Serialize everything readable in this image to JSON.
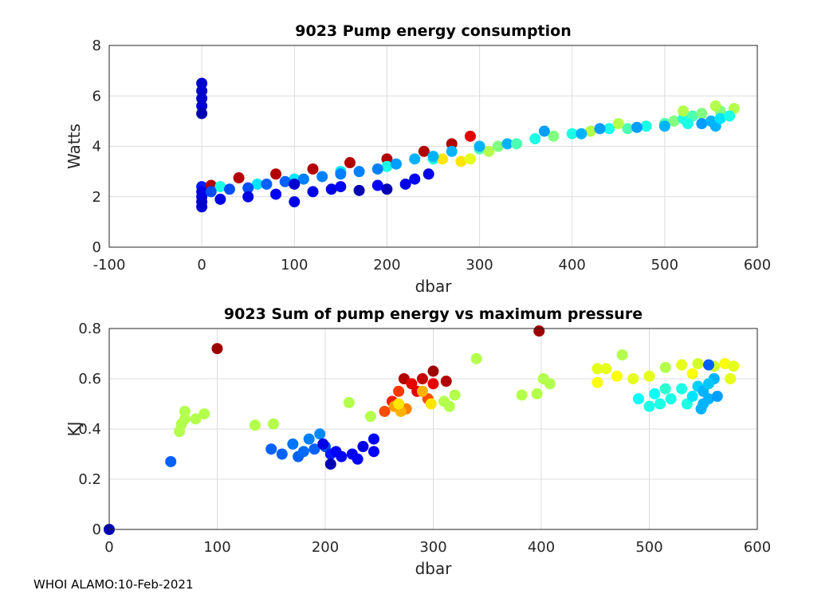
{
  "footer": "WHOI ALAMO:10-Feb-2021",
  "chart_data": [
    {
      "type": "scatter",
      "title": "9023 Pump energy consumption",
      "xlabel": "dbar",
      "ylabel": "Watts",
      "xlim": [
        -100,
        600
      ],
      "ylim": [
        0,
        8
      ],
      "xticks": [
        -100,
        0,
        100,
        200,
        300,
        400,
        500,
        600
      ],
      "yticks": [
        0,
        2,
        4,
        6,
        8
      ],
      "grid": true,
      "color_scale": "jet (0-1)",
      "points": [
        [
          0,
          6.5,
          0.08
        ],
        [
          0,
          6.2,
          0.08
        ],
        [
          0,
          5.9,
          0.08
        ],
        [
          0,
          5.6,
          0.08
        ],
        [
          0,
          5.3,
          0.05
        ],
        [
          0,
          2.4,
          0.15
        ],
        [
          0,
          2.2,
          0.1
        ],
        [
          0,
          2.0,
          0.1
        ],
        [
          0,
          1.8,
          0.08
        ],
        [
          0,
          1.6,
          0.08
        ],
        [
          10,
          2.45,
          0.95
        ],
        [
          40,
          2.75,
          0.95
        ],
        [
          80,
          2.9,
          0.95
        ],
        [
          120,
          3.1,
          0.95
        ],
        [
          160,
          3.35,
          0.95
        ],
        [
          200,
          3.5,
          0.95
        ],
        [
          240,
          3.8,
          0.95
        ],
        [
          270,
          4.1,
          0.95
        ],
        [
          290,
          4.4,
          0.9
        ],
        [
          20,
          2.4,
          0.4
        ],
        [
          60,
          2.5,
          0.35
        ],
        [
          100,
          2.7,
          0.35
        ],
        [
          150,
          3.0,
          0.35
        ],
        [
          200,
          3.2,
          0.4
        ],
        [
          250,
          3.5,
          0.4
        ],
        [
          300,
          3.9,
          0.45
        ],
        [
          320,
          4.0,
          0.5
        ],
        [
          280,
          3.4,
          0.65
        ],
        [
          290,
          3.5,
          0.6
        ],
        [
          310,
          3.8,
          0.55
        ],
        [
          260,
          3.5,
          0.65
        ],
        [
          10,
          2.2,
          0.2
        ],
        [
          30,
          2.3,
          0.2
        ],
        [
          50,
          2.35,
          0.2
        ],
        [
          70,
          2.5,
          0.22
        ],
        [
          90,
          2.6,
          0.22
        ],
        [
          110,
          2.7,
          0.25
        ],
        [
          130,
          2.8,
          0.25
        ],
        [
          150,
          2.9,
          0.25
        ],
        [
          170,
          3.0,
          0.25
        ],
        [
          190,
          3.1,
          0.25
        ],
        [
          210,
          3.3,
          0.28
        ],
        [
          230,
          3.5,
          0.3
        ],
        [
          250,
          3.6,
          0.3
        ],
        [
          270,
          3.8,
          0.3
        ],
        [
          300,
          4.0,
          0.3
        ],
        [
          330,
          4.1,
          0.3
        ],
        [
          20,
          1.9,
          0.1
        ],
        [
          50,
          2.0,
          0.1
        ],
        [
          80,
          2.1,
          0.12
        ],
        [
          100,
          1.8,
          0.1
        ],
        [
          100,
          2.5,
          0.08
        ],
        [
          120,
          2.2,
          0.1
        ],
        [
          140,
          2.3,
          0.1
        ],
        [
          170,
          2.25,
          0.05
        ],
        [
          200,
          2.3,
          0.05
        ],
        [
          220,
          2.5,
          0.1
        ],
        [
          245,
          2.9,
          0.1
        ],
        [
          230,
          2.7,
          0.12
        ],
        [
          190,
          2.45,
          0.12
        ],
        [
          150,
          2.4,
          0.12
        ],
        [
          340,
          4.1,
          0.45
        ],
        [
          360,
          4.3,
          0.4
        ],
        [
          380,
          4.4,
          0.5
        ],
        [
          400,
          4.5,
          0.4
        ],
        [
          420,
          4.6,
          0.55
        ],
        [
          440,
          4.7,
          0.4
        ],
        [
          460,
          4.7,
          0.45
        ],
        [
          480,
          4.8,
          0.4
        ],
        [
          500,
          4.9,
          0.45
        ],
        [
          510,
          5.0,
          0.5
        ],
        [
          520,
          5.1,
          0.4
        ],
        [
          530,
          5.2,
          0.45
        ],
        [
          540,
          5.3,
          0.5
        ],
        [
          560,
          5.4,
          0.5
        ],
        [
          575,
          5.5,
          0.55
        ],
        [
          450,
          4.9,
          0.55
        ],
        [
          520,
          5.4,
          0.55
        ],
        [
          555,
          5.6,
          0.55
        ],
        [
          525,
          4.9,
          0.4
        ],
        [
          370,
          4.6,
          0.28
        ],
        [
          410,
          4.5,
          0.3
        ],
        [
          430,
          4.7,
          0.28
        ],
        [
          470,
          4.75,
          0.28
        ],
        [
          500,
          4.8,
          0.3
        ],
        [
          540,
          4.9,
          0.28
        ],
        [
          550,
          5.0,
          0.3
        ],
        [
          555,
          4.8,
          0.3
        ],
        [
          560,
          5.1,
          0.35
        ],
        [
          570,
          5.2,
          0.4
        ]
      ]
    },
    {
      "type": "scatter",
      "title": "9023 Sum of pump energy vs maximum pressure",
      "xlabel": "dbar",
      "ylabel": "KJ",
      "xlim": [
        0,
        600
      ],
      "ylim": [
        0,
        0.8
      ],
      "xticks": [
        0,
        100,
        200,
        300,
        400,
        500,
        600
      ],
      "yticks": [
        0,
        0.2,
        0.4,
        0.6,
        0.8
      ],
      "grid": true,
      "color_scale": "jet (0-1)",
      "points": [
        [
          0,
          0,
          0.05
        ],
        [
          57,
          0.27,
          0.22
        ],
        [
          65,
          0.39,
          0.55
        ],
        [
          67,
          0.42,
          0.55
        ],
        [
          70,
          0.44,
          0.55
        ],
        [
          70,
          0.47,
          0.55
        ],
        [
          80,
          0.44,
          0.55
        ],
        [
          88,
          0.46,
          0.55
        ],
        [
          100,
          0.72,
          0.97
        ],
        [
          135,
          0.415,
          0.55
        ],
        [
          152,
          0.42,
          0.55
        ],
        [
          222,
          0.505,
          0.55
        ],
        [
          242,
          0.45,
          0.55
        ],
        [
          398,
          0.79,
          0.97
        ],
        [
          340,
          0.68,
          0.55
        ],
        [
          320,
          0.535,
          0.55
        ],
        [
          315,
          0.49,
          0.55
        ],
        [
          310,
          0.51,
          0.55
        ],
        [
          150,
          0.32,
          0.22
        ],
        [
          160,
          0.3,
          0.22
        ],
        [
          170,
          0.34,
          0.24
        ],
        [
          175,
          0.29,
          0.22
        ],
        [
          180,
          0.31,
          0.23
        ],
        [
          185,
          0.36,
          0.25
        ],
        [
          190,
          0.32,
          0.22
        ],
        [
          195,
          0.38,
          0.26
        ],
        [
          200,
          0.33,
          0.2
        ],
        [
          205,
          0.3,
          0.15
        ],
        [
          210,
          0.31,
          0.12
        ],
        [
          215,
          0.29,
          0.12
        ],
        [
          225,
          0.3,
          0.12
        ],
        [
          230,
          0.28,
          0.12
        ],
        [
          235,
          0.33,
          0.1
        ],
        [
          245,
          0.36,
          0.12
        ],
        [
          245,
          0.31,
          0.12
        ],
        [
          198,
          0.34,
          0.1
        ],
        [
          205,
          0.26,
          0.05
        ],
        [
          255,
          0.47,
          0.8
        ],
        [
          262,
          0.51,
          0.85
        ],
        [
          268,
          0.55,
          0.82
        ],
        [
          273,
          0.6,
          0.95
        ],
        [
          280,
          0.58,
          0.9
        ],
        [
          285,
          0.55,
          0.9
        ],
        [
          290,
          0.6,
          0.93
        ],
        [
          295,
          0.52,
          0.8
        ],
        [
          300,
          0.63,
          0.97
        ],
        [
          312,
          0.59,
          0.95
        ],
        [
          300,
          0.58,
          0.9
        ],
        [
          275,
          0.48,
          0.75
        ],
        [
          264,
          0.49,
          0.72
        ],
        [
          270,
          0.47,
          0.7
        ],
        [
          290,
          0.55,
          0.7
        ],
        [
          268,
          0.5,
          0.65
        ],
        [
          298,
          0.5,
          0.65
        ],
        [
          382,
          0.535,
          0.55
        ],
        [
          396,
          0.54,
          0.55
        ],
        [
          402,
          0.6,
          0.55
        ],
        [
          408,
          0.58,
          0.55
        ],
        [
          452,
          0.585,
          0.62
        ],
        [
          452,
          0.64,
          0.6
        ],
        [
          460,
          0.64,
          0.6
        ],
        [
          475,
          0.695,
          0.55
        ],
        [
          470,
          0.61,
          0.62
        ],
        [
          485,
          0.6,
          0.6
        ],
        [
          500,
          0.61,
          0.6
        ],
        [
          515,
          0.645,
          0.55
        ],
        [
          530,
          0.655,
          0.6
        ],
        [
          545,
          0.66,
          0.58
        ],
        [
          560,
          0.65,
          0.58
        ],
        [
          570,
          0.66,
          0.62
        ],
        [
          578,
          0.65,
          0.6
        ],
        [
          540,
          0.62,
          0.62
        ],
        [
          560,
          0.6,
          0.6
        ],
        [
          575,
          0.6,
          0.6
        ],
        [
          490,
          0.52,
          0.38
        ],
        [
          500,
          0.49,
          0.4
        ],
        [
          505,
          0.54,
          0.38
        ],
        [
          510,
          0.5,
          0.4
        ],
        [
          515,
          0.56,
          0.42
        ],
        [
          520,
          0.52,
          0.4
        ],
        [
          530,
          0.56,
          0.4
        ],
        [
          535,
          0.5,
          0.4
        ],
        [
          540,
          0.53,
          0.35
        ],
        [
          545,
          0.57,
          0.33
        ],
        [
          550,
          0.55,
          0.3
        ],
        [
          550,
          0.5,
          0.3
        ],
        [
          555,
          0.52,
          0.3
        ],
        [
          560,
          0.6,
          0.3
        ],
        [
          548,
          0.48,
          0.3
        ],
        [
          563,
          0.53,
          0.28
        ],
        [
          555,
          0.58,
          0.32
        ],
        [
          555,
          0.655,
          0.22
        ]
      ]
    }
  ]
}
